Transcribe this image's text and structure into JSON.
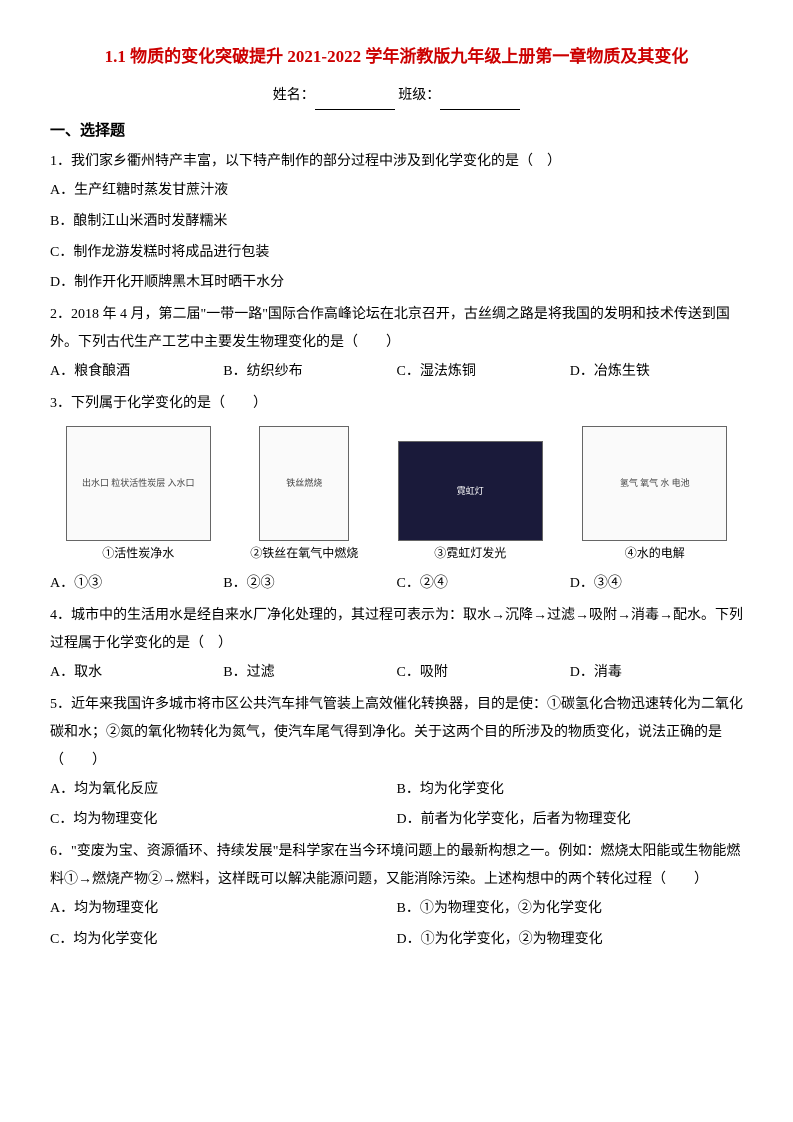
{
  "title": "1.1 物质的变化突破提升 2021-2022 学年浙教版九年级上册第一章物质及其变化",
  "name_label": "姓名：",
  "class_label": "班级：",
  "section1_header": "一、选择题",
  "q1": {
    "text": "1．我们家乡衢州特产丰富，以下特产制作的部分过程中涉及到化学变化的是（　）",
    "optA": "A．生产红糖时蒸发甘蔗汁液",
    "optB": "B．酿制江山米酒时发酵糯米",
    "optC": "C．制作龙游发糕时将成品进行包装",
    "optD": "D．制作开化开顺牌黑木耳时晒干水分"
  },
  "q2": {
    "text": "2．2018 年 4 月，第二届\"一带一路\"国际合作高峰论坛在北京召开，古丝绸之路是将我国的发明和技术传送到国外。下列古代生产工艺中主要发生物理变化的是（　　）",
    "optA": "A．粮食酿酒",
    "optB": "B．纺织纱布",
    "optC": "C．湿法炼铜",
    "optD": "D．冶炼生铁"
  },
  "q3": {
    "text": "3．下列属于化学变化的是（　　）",
    "fig1_caption": "①活性炭净水",
    "fig2_caption": "②铁丝在氧气中燃烧",
    "fig3_caption": "③霓虹灯发光",
    "fig4_caption": "④水的电解",
    "fig1_inner": "出水口\n粒状活性炭层\n入水口",
    "fig2_inner": "铁丝燃烧",
    "fig3_inner": "霓虹灯",
    "fig4_inner": "氢气 氧气\n水\n电池",
    "optA": "A．①③",
    "optB": "B．②③",
    "optC": "C．②④",
    "optD": "D．③④"
  },
  "q4": {
    "text": "4．城市中的生活用水是经自来水厂净化处理的，其过程可表示为：取水→沉降→过滤→吸附→消毒→配水。下列过程属于化学变化的是（　）",
    "optA": "A．取水",
    "optB": "B．过滤",
    "optC": "C．吸附",
    "optD": "D．消毒"
  },
  "q5": {
    "text": "5．近年来我国许多城市将市区公共汽车排气管装上高效催化转换器，目的是使：①碳氢化合物迅速转化为二氧化碳和水；②氮的氧化物转化为氮气，使汽车尾气得到净化。关于这两个目的所涉及的物质变化，说法正确的是（　　）",
    "optA": "A．均为氧化反应",
    "optB": "B．均为化学变化",
    "optC": "C．均为物理变化",
    "optD": "D．前者为化学变化，后者为物理变化"
  },
  "q6": {
    "text": "6．\"变废为宝、资源循环、持续发展\"是科学家在当今环境问题上的最新构想之一。例如：燃烧太阳能或生物能燃料①→燃烧产物②→燃料，这样既可以解决能源问题，又能消除污染。上述构想中的两个转化过程（　　）",
    "optA": "A．均为物理变化",
    "optB": "B．①为物理变化，②为化学变化",
    "optC": "C．均为化学变化",
    "optD": "D．①为化学变化，②为物理变化"
  }
}
